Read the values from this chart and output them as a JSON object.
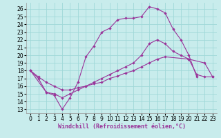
{
  "background_color": "#c8ecec",
  "grid_color": "#a0d8d8",
  "line_color": "#993399",
  "xlabel": "Windchill (Refroidissement éolien,°C)",
  "xlabel_fontsize": 6,
  "xlim": [
    -0.5,
    23.5
  ],
  "ylim": [
    12.5,
    26.8
  ],
  "xticks": [
    0,
    1,
    2,
    3,
    4,
    5,
    6,
    7,
    8,
    9,
    10,
    11,
    12,
    13,
    14,
    15,
    16,
    17,
    18,
    19,
    20,
    21,
    22,
    23
  ],
  "yticks": [
    13,
    14,
    15,
    16,
    17,
    18,
    19,
    20,
    21,
    22,
    23,
    24,
    25,
    26
  ],
  "tick_fontsize": 5.5,
  "curve1_x": [
    0,
    1,
    2,
    3,
    4,
    5,
    6,
    7,
    8,
    9,
    10,
    11,
    12,
    13,
    14,
    15,
    16,
    17,
    18,
    19,
    20,
    21
  ],
  "curve1_y": [
    18.0,
    17.0,
    15.2,
    14.8,
    13.0,
    14.5,
    16.5,
    19.8,
    21.2,
    23.0,
    23.5,
    24.6,
    24.8,
    24.8,
    25.0,
    26.3,
    26.0,
    25.5,
    23.4,
    22.0,
    20.0,
    17.2
  ],
  "curve2_x": [
    0,
    1,
    2,
    3,
    4,
    5,
    6,
    7,
    8,
    9,
    10,
    11,
    12,
    13,
    14,
    15,
    16,
    17,
    18,
    19,
    20,
    21,
    22,
    23
  ],
  "curve2_y": [
    18.0,
    17.2,
    16.5,
    16.0,
    15.5,
    15.5,
    15.8,
    16.0,
    16.5,
    17.0,
    17.5,
    18.0,
    18.5,
    19.0,
    20.0,
    21.5,
    22.0,
    21.5,
    20.5,
    20.0,
    19.5,
    17.5,
    17.2,
    17.2
  ],
  "curve3_x": [
    0,
    2,
    3,
    4,
    5,
    6,
    7,
    8,
    9,
    10,
    11,
    12,
    13,
    14,
    15,
    16,
    17,
    20,
    22,
    23
  ],
  "curve3_y": [
    18.0,
    15.2,
    15.0,
    14.5,
    15.0,
    15.5,
    16.0,
    16.3,
    16.5,
    17.0,
    17.3,
    17.7,
    18.0,
    18.5,
    19.0,
    19.5,
    19.8,
    19.5,
    19.0,
    17.2
  ]
}
